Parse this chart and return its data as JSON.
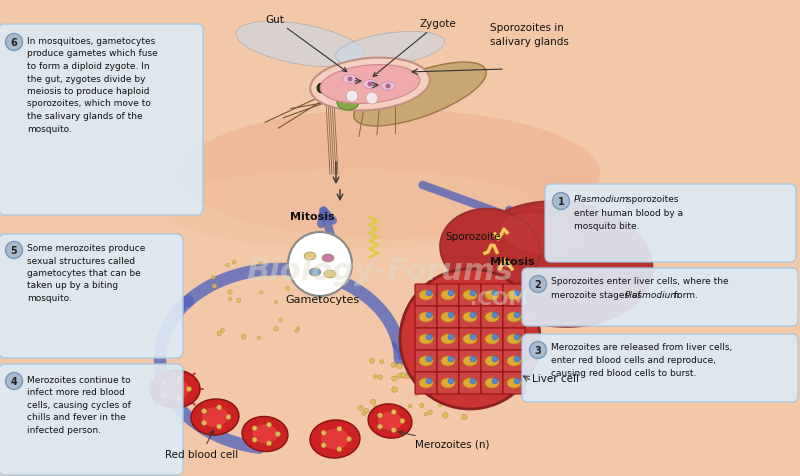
{
  "bg_color": "#f2c8a8",
  "box_color": "#ddeaf5",
  "box_edge_color": "#aac8e0",
  "step1_num": "1",
  "step2_num": "2",
  "step3_num": "3",
  "step4_num": "4",
  "step5_num": "5",
  "step6_num": "6",
  "step6_text": "In mosquitoes, gametocytes\nproduce gametes which fuse\nto form a diploid zygote. In\nthe gut, zygotes divide by\nmeiosis to produce haploid\nsporozoites, which move to\nthe salivary glands of the\nmosquito.",
  "step5_text": "Some merozoites produce\nsexual structures called\ngametocytes that can be\ntaken up by a biting\nmosquito.",
  "step4_text": "Merozoites continue to\ninfect more red blood\ncells, causing cycles of\nchills and fever in the\ninfected person.",
  "label_gut": "Gut",
  "label_zygote": "Zygote",
  "label_sporozoites_salivary": "Sporozoites in\nsalivary glands",
  "label_sporozoite": "Sporozoite",
  "label_mitosis1": "Mitosis",
  "label_gametocytes": "Gametocytes",
  "label_mitosis2": "Mitosis",
  "label_liver_cell": "Liver cell",
  "label_merozoites": "Merozoites (n)",
  "label_rbc": "Red blood cell",
  "arrow_color": "#5565bb",
  "liver_color": "#b83030",
  "liver_dark": "#993030",
  "rbc_color": "#cc2222",
  "rbc_inner": "#dd5555",
  "merozoite_color": "#ddbb55",
  "gut_pink": "#f0aaaa",
  "mosquito_body": "#c8a870",
  "mosquito_dark": "#997744",
  "skin_tone": "#f0b898",
  "watermark1": "Biology-Forums",
  "watermark2": ".COM"
}
